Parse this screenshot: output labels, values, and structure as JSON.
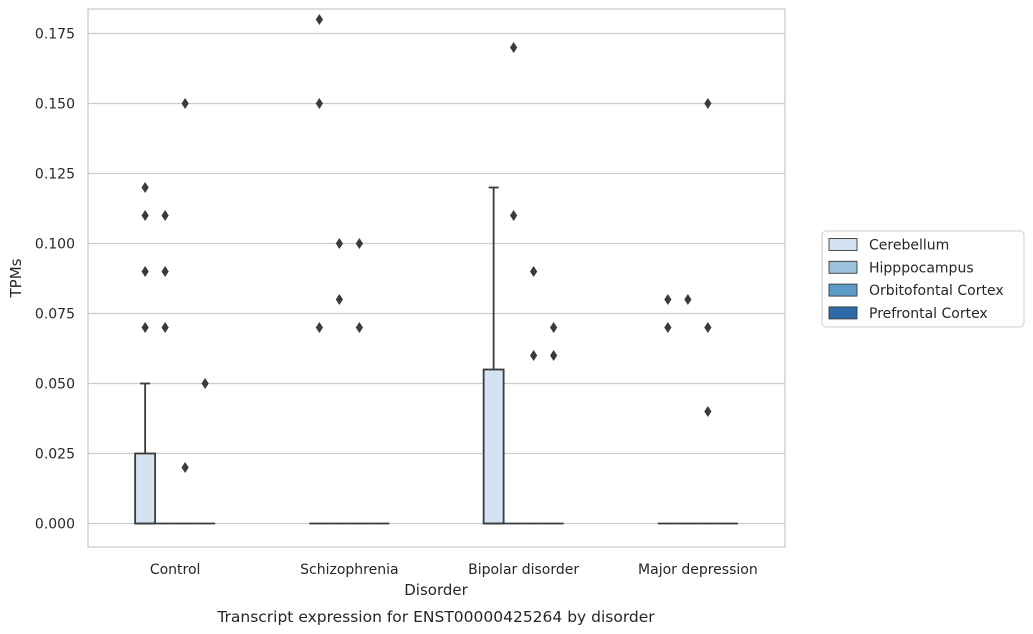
{
  "caption": "Transcript expression for ENST00000425264 by disorder",
  "chart_data": {
    "type": "box",
    "xlabel": "Disorder",
    "ylabel": "TPMs",
    "ylim": [
      -0.009,
      0.189
    ],
    "yticks": [
      "0.000",
      "0.025",
      "0.050",
      "0.075",
      "0.100",
      "0.125",
      "0.150",
      "0.175"
    ],
    "grid": "horizontal",
    "legend_placement": "right",
    "categories": [
      "Control",
      "Schizophrenia",
      "Bipolar disorder",
      "Major depression"
    ],
    "series": [
      {
        "name": "Cerebellum",
        "color": "#d3e3f2",
        "boxes": [
          {
            "q1": 0,
            "median": 0,
            "q3": 0.025,
            "whisker_low": 0,
            "whisker_high": 0.05,
            "outliers": [
              0.07,
              0.09,
              0.11,
              0.12
            ]
          },
          {
            "q1": 0,
            "median": 0,
            "q3": 0,
            "whisker_low": 0,
            "whisker_high": 0,
            "outliers": [
              0.07,
              0.15,
              0.18
            ]
          },
          {
            "q1": 0,
            "median": 0,
            "q3": 0.055,
            "whisker_low": 0,
            "whisker_high": 0.12,
            "outliers": []
          },
          {
            "q1": 0,
            "median": 0,
            "q3": 0,
            "whisker_low": 0,
            "whisker_high": 0,
            "outliers": [
              0.07,
              0.08
            ]
          }
        ]
      },
      {
        "name": "Hipppocampus",
        "color": "#9ac2dc",
        "boxes": [
          {
            "q1": 0,
            "median": 0,
            "q3": 0,
            "whisker_low": 0,
            "whisker_high": 0,
            "outliers": [
              0.07,
              0.09,
              0.11
            ]
          },
          {
            "q1": 0,
            "median": 0,
            "q3": 0,
            "whisker_low": 0,
            "whisker_high": 0,
            "outliers": [
              0.08,
              0.1
            ]
          },
          {
            "q1": 0,
            "median": 0,
            "q3": 0,
            "whisker_low": 0,
            "whisker_high": 0,
            "outliers": [
              0.11,
              0.17
            ]
          },
          {
            "q1": 0,
            "median": 0,
            "q3": 0,
            "whisker_low": 0,
            "whisker_high": 0,
            "outliers": [
              0.08
            ]
          }
        ]
      },
      {
        "name": "Orbitofontal Cortex",
        "color": "#5b9bc8",
        "boxes": [
          {
            "q1": 0,
            "median": 0,
            "q3": 0,
            "whisker_low": 0,
            "whisker_high": 0,
            "outliers": [
              0.02,
              0.15
            ]
          },
          {
            "q1": 0,
            "median": 0,
            "q3": 0,
            "whisker_low": 0,
            "whisker_high": 0,
            "outliers": [
              0.07,
              0.1
            ]
          },
          {
            "q1": 0,
            "median": 0,
            "q3": 0,
            "whisker_low": 0,
            "whisker_high": 0,
            "outliers": [
              0.06,
              0.09
            ]
          },
          {
            "q1": 0,
            "median": 0,
            "q3": 0,
            "whisker_low": 0,
            "whisker_high": 0,
            "outliers": [
              0.04,
              0.07,
              0.15
            ]
          }
        ]
      },
      {
        "name": "Prefrontal Cortex",
        "color": "#2c6aa8",
        "boxes": [
          {
            "q1": 0,
            "median": 0,
            "q3": 0,
            "whisker_low": 0,
            "whisker_high": 0,
            "outliers": [
              0.05
            ]
          },
          {
            "q1": 0,
            "median": 0,
            "q3": 0,
            "whisker_low": 0,
            "whisker_high": 0,
            "outliers": []
          },
          {
            "q1": 0,
            "median": 0,
            "q3": 0,
            "whisker_low": 0,
            "whisker_high": 0,
            "outliers": [
              0.06,
              0.07
            ]
          },
          {
            "q1": 0,
            "median": 0,
            "q3": 0,
            "whisker_low": 0,
            "whisker_high": 0,
            "outliers": []
          }
        ]
      }
    ]
  }
}
